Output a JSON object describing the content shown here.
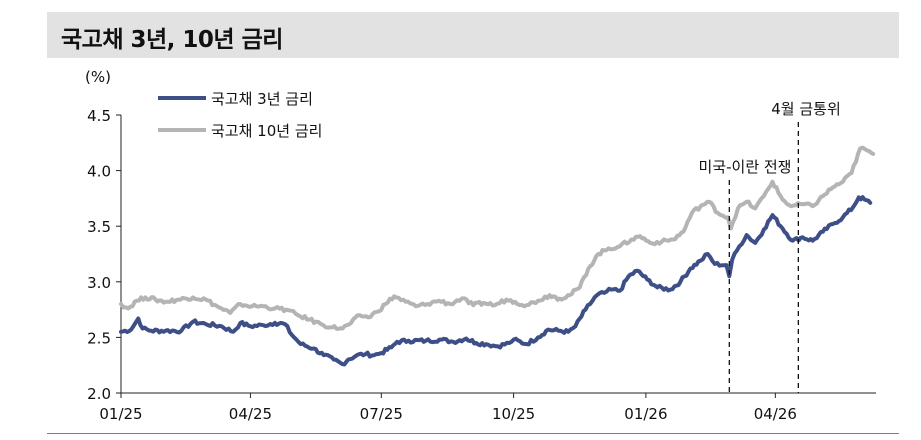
{
  "title": "국고채 3년, 10년 금리",
  "chart_data": {
    "type": "line",
    "title": "국고채 3년, 10년 금리",
    "yunit": "(%)",
    "ylim": [
      2.0,
      4.5
    ],
    "yticks": [
      "4.5",
      "4.0",
      "3.5",
      "3.0",
      "2.5",
      "2.0"
    ],
    "xticks": [
      "01/25",
      "04/25",
      "07/25",
      "10/25",
      "01/26",
      "04/26"
    ],
    "xlim": [
      "2025-01-01",
      "2026-06-10"
    ],
    "grid": false,
    "legend_position": "top-left",
    "colors": {
      "series3y": "#3d4f86",
      "series10y": "#b4b4b4"
    },
    "annotations": [
      {
        "label": "미국-이란 전쟁",
        "date": "2026-02-28"
      },
      {
        "label": "4월 금통위",
        "date": "2026-04-17"
      }
    ],
    "series": [
      {
        "name": "국고채 3년 금리",
        "points": [
          [
            "2025-01-01",
            2.55
          ],
          [
            "2025-01-08",
            2.57
          ],
          [
            "2025-01-13",
            2.67
          ],
          [
            "2025-01-16",
            2.58
          ],
          [
            "2025-01-22",
            2.56
          ],
          [
            "2025-02-01",
            2.56
          ],
          [
            "2025-02-12",
            2.56
          ],
          [
            "2025-02-20",
            2.64
          ],
          [
            "2025-03-01",
            2.62
          ],
          [
            "2025-03-12",
            2.6
          ],
          [
            "2025-03-20",
            2.55
          ],
          [
            "2025-03-25",
            2.63
          ],
          [
            "2025-04-01",
            2.6
          ],
          [
            "2025-04-10",
            2.61
          ],
          [
            "2025-04-18",
            2.63
          ],
          [
            "2025-04-25",
            2.62
          ],
          [
            "2025-04-30",
            2.52
          ],
          [
            "2025-05-06",
            2.44
          ],
          [
            "2025-05-15",
            2.4
          ],
          [
            "2025-05-22",
            2.34
          ],
          [
            "2025-05-29",
            2.3
          ],
          [
            "2025-06-04",
            2.26
          ],
          [
            "2025-06-08",
            2.3
          ],
          [
            "2025-06-14",
            2.34
          ],
          [
            "2025-06-20",
            2.35
          ],
          [
            "2025-06-26",
            2.34
          ],
          [
            "2025-07-01",
            2.36
          ],
          [
            "2025-07-08",
            2.41
          ],
          [
            "2025-07-12",
            2.46
          ],
          [
            "2025-07-20",
            2.47
          ],
          [
            "2025-08-01",
            2.47
          ],
          [
            "2025-08-12",
            2.48
          ],
          [
            "2025-08-20",
            2.46
          ],
          [
            "2025-08-29",
            2.49
          ],
          [
            "2025-09-05",
            2.45
          ],
          [
            "2025-09-12",
            2.44
          ],
          [
            "2025-09-20",
            2.42
          ],
          [
            "2025-09-28",
            2.45
          ],
          [
            "2025-10-01",
            2.48
          ],
          [
            "2025-10-10",
            2.44
          ],
          [
            "2025-10-18",
            2.5
          ],
          [
            "2025-10-25",
            2.57
          ],
          [
            "2025-11-01",
            2.56
          ],
          [
            "2025-11-08",
            2.55
          ],
          [
            "2025-11-13",
            2.6
          ],
          [
            "2025-11-20",
            2.75
          ],
          [
            "2025-11-28",
            2.88
          ],
          [
            "2025-12-03",
            2.9
          ],
          [
            "2025-12-08",
            2.93
          ],
          [
            "2025-12-14",
            2.92
          ],
          [
            "2025-12-20",
            3.05
          ],
          [
            "2025-12-26",
            3.1
          ],
          [
            "2026-01-02",
            3.02
          ],
          [
            "2026-01-09",
            2.95
          ],
          [
            "2026-01-18",
            2.93
          ],
          [
            "2026-01-25",
            3.0
          ],
          [
            "2026-02-01",
            3.12
          ],
          [
            "2026-02-08",
            3.19
          ],
          [
            "2026-02-13",
            3.25
          ],
          [
            "2026-02-18",
            3.16
          ],
          [
            "2026-02-26",
            3.15
          ],
          [
            "2026-02-28",
            3.05
          ],
          [
            "2026-03-02",
            3.2
          ],
          [
            "2026-03-07",
            3.32
          ],
          [
            "2026-03-12",
            3.42
          ],
          [
            "2026-03-18",
            3.35
          ],
          [
            "2026-03-24",
            3.47
          ],
          [
            "2026-03-30",
            3.6
          ],
          [
            "2026-04-06",
            3.48
          ],
          [
            "2026-04-13",
            3.37
          ],
          [
            "2026-04-20",
            3.4
          ],
          [
            "2026-04-27",
            3.37
          ],
          [
            "2026-05-04",
            3.45
          ],
          [
            "2026-05-11",
            3.52
          ],
          [
            "2026-05-18",
            3.58
          ],
          [
            "2026-05-25",
            3.67
          ],
          [
            "2026-05-29",
            3.76
          ],
          [
            "2026-06-02",
            3.74
          ],
          [
            "2026-06-06",
            3.71
          ]
        ]
      },
      {
        "name": "국고채 10년 금리",
        "points": [
          [
            "2025-01-01",
            2.8
          ],
          [
            "2025-01-06",
            2.76
          ],
          [
            "2025-01-12",
            2.83
          ],
          [
            "2025-01-18",
            2.86
          ],
          [
            "2025-01-25",
            2.84
          ],
          [
            "2025-02-01",
            2.82
          ],
          [
            "2025-02-10",
            2.84
          ],
          [
            "2025-02-20",
            2.86
          ],
          [
            "2025-03-01",
            2.84
          ],
          [
            "2025-03-10",
            2.77
          ],
          [
            "2025-03-18",
            2.72
          ],
          [
            "2025-03-25",
            2.8
          ],
          [
            "2025-04-02",
            2.78
          ],
          [
            "2025-04-10",
            2.78
          ],
          [
            "2025-04-18",
            2.76
          ],
          [
            "2025-04-26",
            2.75
          ],
          [
            "2025-05-04",
            2.7
          ],
          [
            "2025-05-12",
            2.66
          ],
          [
            "2025-05-20",
            2.62
          ],
          [
            "2025-05-28",
            2.59
          ],
          [
            "2025-06-04",
            2.58
          ],
          [
            "2025-06-10",
            2.63
          ],
          [
            "2025-06-16",
            2.7
          ],
          [
            "2025-06-22",
            2.68
          ],
          [
            "2025-06-28",
            2.73
          ],
          [
            "2025-07-04",
            2.8
          ],
          [
            "2025-07-10",
            2.87
          ],
          [
            "2025-07-18",
            2.82
          ],
          [
            "2025-07-25",
            2.78
          ],
          [
            "2025-08-02",
            2.8
          ],
          [
            "2025-08-10",
            2.83
          ],
          [
            "2025-08-18",
            2.8
          ],
          [
            "2025-08-26",
            2.85
          ],
          [
            "2025-09-03",
            2.79
          ],
          [
            "2025-09-10",
            2.81
          ],
          [
            "2025-09-18",
            2.79
          ],
          [
            "2025-09-26",
            2.84
          ],
          [
            "2025-10-02",
            2.82
          ],
          [
            "2025-10-10",
            2.79
          ],
          [
            "2025-10-18",
            2.83
          ],
          [
            "2025-10-26",
            2.88
          ],
          [
            "2025-11-02",
            2.85
          ],
          [
            "2025-11-09",
            2.88
          ],
          [
            "2025-11-16",
            2.95
          ],
          [
            "2025-11-22",
            3.12
          ],
          [
            "2025-11-29",
            3.25
          ],
          [
            "2025-12-06",
            3.3
          ],
          [
            "2025-12-14",
            3.32
          ],
          [
            "2025-12-22",
            3.38
          ],
          [
            "2025-12-28",
            3.41
          ],
          [
            "2026-01-04",
            3.35
          ],
          [
            "2026-01-12",
            3.36
          ],
          [
            "2026-01-20",
            3.38
          ],
          [
            "2026-01-27",
            3.45
          ],
          [
            "2026-02-02",
            3.62
          ],
          [
            "2026-02-08",
            3.68
          ],
          [
            "2026-02-14",
            3.72
          ],
          [
            "2026-02-20",
            3.62
          ],
          [
            "2026-02-27",
            3.58
          ],
          [
            "2026-03-01",
            3.48
          ],
          [
            "2026-03-06",
            3.66
          ],
          [
            "2026-03-12",
            3.72
          ],
          [
            "2026-03-18",
            3.66
          ],
          [
            "2026-03-24",
            3.77
          ],
          [
            "2026-03-30",
            3.9
          ],
          [
            "2026-04-06",
            3.74
          ],
          [
            "2026-04-12",
            3.68
          ],
          [
            "2026-04-20",
            3.7
          ],
          [
            "2026-04-27",
            3.68
          ],
          [
            "2026-05-04",
            3.77
          ],
          [
            "2026-05-11",
            3.85
          ],
          [
            "2026-05-18",
            3.9
          ],
          [
            "2026-05-24",
            3.98
          ],
          [
            "2026-05-30",
            4.2
          ],
          [
            "2026-06-04",
            4.18
          ],
          [
            "2026-06-08",
            4.15
          ]
        ]
      }
    ]
  }
}
